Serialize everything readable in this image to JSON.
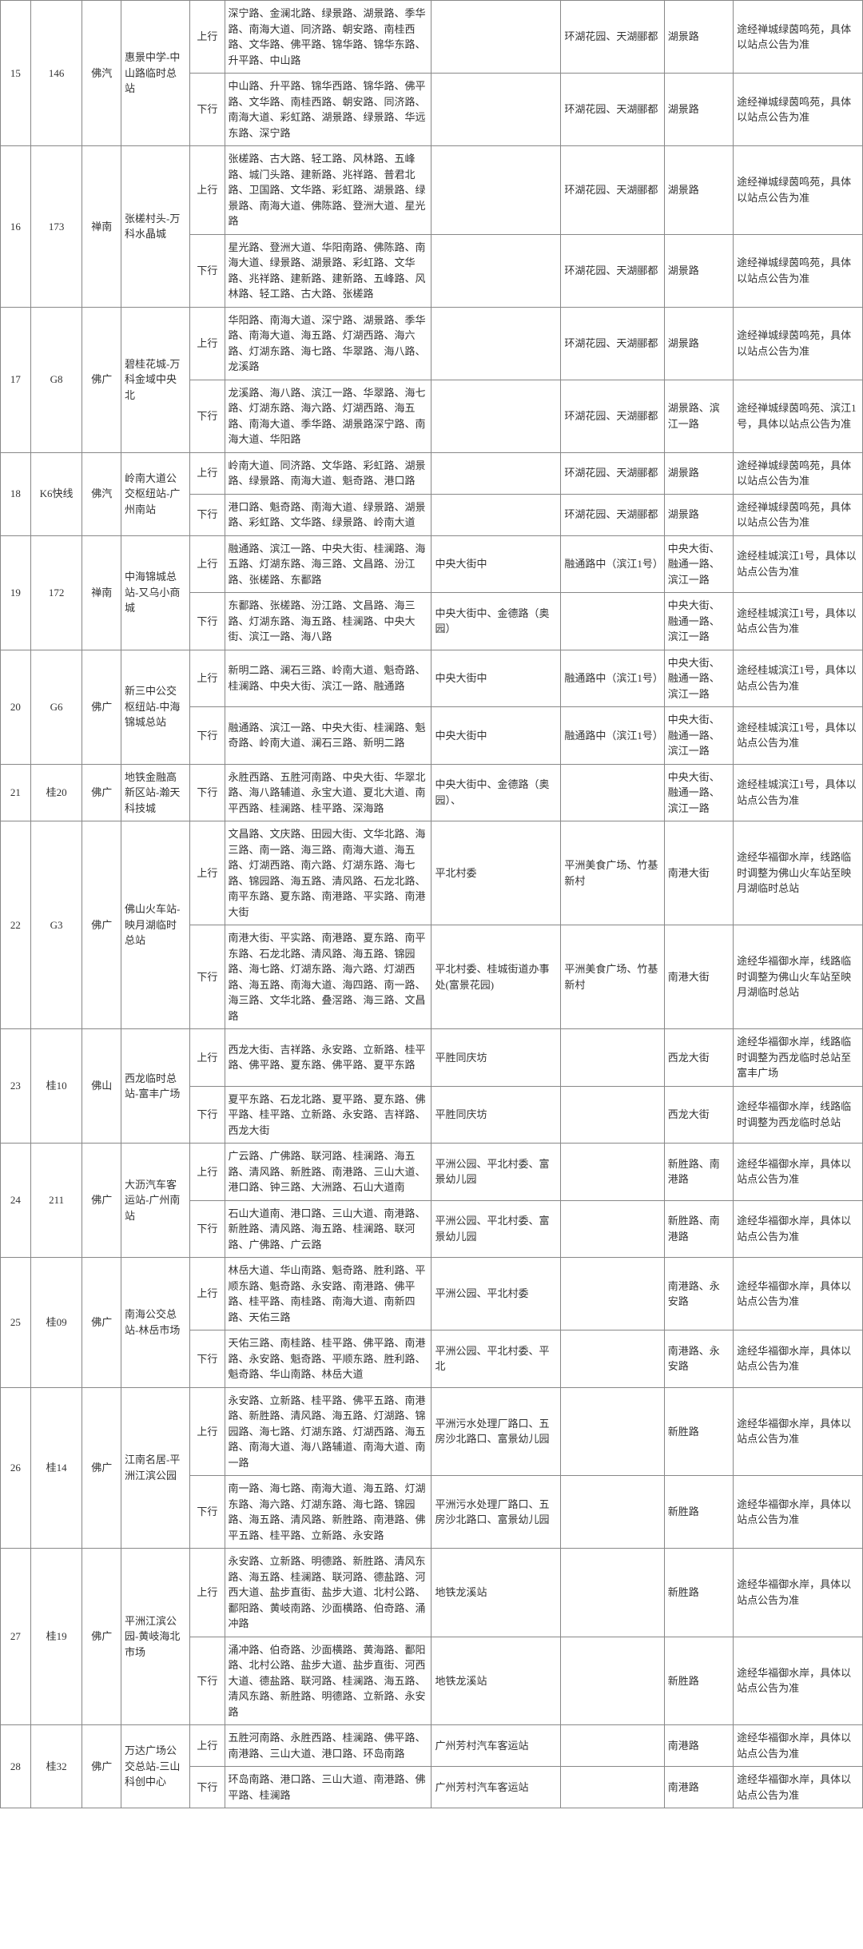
{
  "rows": [
    {
      "idx": "15",
      "route": "146",
      "op": "佛汽",
      "terminals": "惠景中学-中山路临时总站",
      "dirs": [
        {
          "d": "上行",
          "path": "深宁路、金澜北路、绿景路、湖景路、季华路、南海大道、同济路、朝安路、南桂西路、文华路、佛平路、锦华路、锦华东路、升平路、中山路",
          "c6": "",
          "c7": "环湖花园、天湖郦都",
          "c8": "湖景路",
          "c9": "途经禅城绿茵鸣苑，具体以站点公告为准"
        },
        {
          "d": "下行",
          "path": "中山路、升平路、锦华西路、锦华路、佛平路、文华路、南桂西路、朝安路、同济路、南海大道、彩虹路、湖景路、绿景路、华远东路、深宁路",
          "c6": "",
          "c7": "环湖花园、天湖郦都",
          "c8": "湖景路",
          "c9": "途经禅城绿茵鸣苑，具体以站点公告为准"
        }
      ]
    },
    {
      "idx": "16",
      "route": "173",
      "op": "禅南",
      "terminals": "张槎村头-万科水晶城",
      "dirs": [
        {
          "d": "上行",
          "path": "张槎路、古大路、轻工路、风林路、五峰路、城门头路、建新路、兆祥路、普君北路、卫国路、文华路、彩虹路、湖景路、绿景路、南海大道、佛陈路、登洲大道、星光路",
          "c6": "",
          "c7": "环湖花园、天湖郦都",
          "c8": "湖景路",
          "c9": "途经禅城绿茵鸣苑，具体以站点公告为准"
        },
        {
          "d": "下行",
          "path": "星光路、登洲大道、华阳南路、佛陈路、南海大道、绿景路、湖景路、彩虹路、文华路、兆祥路、建新路、建新路、五峰路、风林路、轻工路、古大路、张槎路",
          "c6": "",
          "c7": "环湖花园、天湖郦都",
          "c8": "湖景路",
          "c9": "途经禅城绿茵鸣苑，具体以站点公告为准"
        }
      ]
    },
    {
      "idx": "17",
      "route": "G8",
      "op": "佛广",
      "terminals": "碧桂花城-万科金域中央北",
      "dirs": [
        {
          "d": "上行",
          "path": "华阳路、南海大道、深宁路、湖景路、季华路、南海大道、海五路、灯湖西路、海六路、灯湖东路、海七路、华翠路、海八路、龙溪路",
          "c6": "",
          "c7": "环湖花园、天湖郦都",
          "c8": "湖景路",
          "c9": "途经禅城绿茵鸣苑，具体以站点公告为准"
        },
        {
          "d": "下行",
          "path": "龙溪路、海八路、滨江一路、华翠路、海七路、灯湖东路、海六路、灯湖西路、海五路、南海大道、季华路、湖景路深宁路、南海大道、华阳路",
          "c6": "",
          "c7": "环湖花园、天湖郦都",
          "c8": "湖景路、滨江一路",
          "c9": "途经禅城绿茵鸣苑、滨江1号，具体以站点公告为准"
        }
      ]
    },
    {
      "idx": "18",
      "route": "K6快线",
      "op": "佛汽",
      "terminals": "岭南大道公交枢纽站-广州南站",
      "dirs": [
        {
          "d": "上行",
          "path": "岭南大道、同济路、文华路、彩虹路、湖景路、绿景路、南海大道、魁奇路、港口路",
          "c6": "",
          "c7": "环湖花园、天湖郦都",
          "c8": "湖景路",
          "c9": "途经禅城绿茵鸣苑，具体以站点公告为准"
        },
        {
          "d": "下行",
          "path": "港口路、魁奇路、南海大道、绿景路、湖景路、彩虹路、文华路、绿景路、岭南大道",
          "c6": "",
          "c7": "环湖花园、天湖郦都",
          "c8": "湖景路",
          "c9": "途经禅城绿茵鸣苑，具体以站点公告为准"
        }
      ]
    },
    {
      "idx": "19",
      "route": "172",
      "op": "禅南",
      "terminals": "中海锦城总站-又乌小商城",
      "dirs": [
        {
          "d": "上行",
          "path": "融通路、滨江一路、中央大街、桂澜路、海五路、灯湖东路、海三路、文昌路、汾江路、张槎路、东鄱路",
          "c6": "中央大街中",
          "c7": "融通路中（滨江1号）",
          "c8": "中央大街、融通一路、滨江一路",
          "c9": "途经桂城滨江1号，具体以站点公告为准"
        },
        {
          "d": "下行",
          "path": "东鄱路、张槎路、汾江路、文昌路、海三路、灯湖东路、海五路、桂澜路、中央大街、滨江一路、海八路",
          "c6": "中央大街中、金德路（奥园）",
          "c7": "",
          "c8": "中央大街、融通一路、滨江一路",
          "c9": "途经桂城滨江1号，具体以站点公告为准"
        }
      ]
    },
    {
      "idx": "20",
      "route": "G6",
      "op": "佛广",
      "terminals": "新三中公交枢纽站-中海锦城总站",
      "dirs": [
        {
          "d": "上行",
          "path": "新明二路、澜石三路、岭南大道、魁奇路、桂澜路、中央大街、滨江一路、融通路",
          "c6": "中央大街中",
          "c7": "融通路中（滨江1号）",
          "c8": "中央大街、融通一路、滨江一路",
          "c9": "途经桂城滨江1号，具体以站点公告为准"
        },
        {
          "d": "下行",
          "path": "融通路、滨江一路、中央大街、桂澜路、魁奇路、岭南大道、澜石三路、新明二路",
          "c6": "中央大街中",
          "c7": "融通路中（滨江1号）",
          "c8": "中央大街、融通一路、滨江一路",
          "c9": "途经桂城滨江1号，具体以站点公告为准"
        }
      ]
    },
    {
      "idx": "21",
      "route": "桂20",
      "op": "佛广",
      "terminals": "地铁金融高新区站-瀚天科技城",
      "dirs": [
        {
          "d": "下行",
          "path": "永胜西路、五胜河南路、中央大街、华翠北路、海八路辅道、永宝大道、夏北大道、南平西路、桂澜路、桂平路、深海路",
          "c6": "中央大街中、金德路（奥园）、",
          "c7": "",
          "c8": "中央大街、融通一路、滨江一路",
          "c9": "途经桂城滨江1号，具体以站点公告为准"
        }
      ]
    },
    {
      "idx": "22",
      "route": "G3",
      "op": "佛广",
      "terminals": "佛山火车站-映月湖临时总站",
      "dirs": [
        {
          "d": "上行",
          "path": "文昌路、文庆路、田园大街、文华北路、海三路、南一路、海三路、南海大道、海五路、灯湖西路、南六路、灯湖东路、海七路、锦园路、海五路、清风路、石龙北路、南平东路、夏东路、南港路、平实路、南港大街",
          "c6": "平北村委",
          "c7": "平洲美食广场、竹基新村",
          "c8": "南港大街",
          "c9": "途经华福御水岸，线路临时调整为佛山火车站至映月湖临时总站"
        },
        {
          "d": "下行",
          "path": "南港大街、平实路、南港路、夏东路、南平东路、石龙北路、清风路、海五路、锦园路、海七路、灯湖东路、海六路、灯湖西路、海五路、南海大道、海四路、南一路、海三路、文华北路、叠滘路、海三路、文昌路",
          "c6": "平北村委、桂城街道办事处(富景花园)",
          "c7": "平洲美食广场、竹基新村",
          "c8": "南港大街",
          "c9": "途经华福御水岸，线路临时调整为佛山火车站至映月湖临时总站"
        }
      ]
    },
    {
      "idx": "23",
      "route": "桂10",
      "op": "佛山",
      "terminals": "西龙临时总站-富丰广场",
      "dirs": [
        {
          "d": "上行",
          "path": "西龙大街、吉祥路、永安路、立新路、桂平路、佛平路、夏东路、佛平路、夏平东路",
          "c6": "平胜同庆坊",
          "c7": "",
          "c8": "西龙大街",
          "c9": "途经华福御水岸，线路临时调整为西龙临时总站至富丰广场"
        },
        {
          "d": "下行",
          "path": "夏平东路、石龙北路、夏平路、夏东路、佛平路、桂平路、立新路、永安路、吉祥路、西龙大街",
          "c6": "平胜同庆坊",
          "c7": "",
          "c8": "西龙大街",
          "c9": "途经华福御水岸，线路临时调整为西龙临时总站"
        }
      ]
    },
    {
      "idx": "24",
      "route": "211",
      "op": "佛广",
      "terminals": "大沥汽车客运站-广州南站",
      "dirs": [
        {
          "d": "上行",
          "path": "广云路、广佛路、联河路、桂澜路、海五路、清风路、新胜路、南港路、三山大道、港口路、钟三路、大洲路、石山大道南",
          "c6": "平洲公园、平北村委、富景幼儿园",
          "c7": "",
          "c8": "新胜路、南港路",
          "c9": "途经华福御水岸，具体以站点公告为准"
        },
        {
          "d": "下行",
          "path": "石山大道南、港口路、三山大道、南港路、新胜路、清风路、海五路、桂澜路、联河路、广佛路、广云路",
          "c6": "平洲公园、平北村委、富景幼儿园",
          "c7": "",
          "c8": "新胜路、南港路",
          "c9": "途经华福御水岸，具体以站点公告为准"
        }
      ]
    },
    {
      "idx": "25",
      "route": "桂09",
      "op": "佛广",
      "terminals": "南海公交总站-林岳市场",
      "dirs": [
        {
          "d": "上行",
          "path": "林岳大道、华山南路、魁奇路、胜利路、平顺东路、魁奇路、永安路、南港路、佛平路、桂平路、南桂路、南海大道、南新四路、天佑三路",
          "c6": "平洲公园、平北村委",
          "c7": "",
          "c8": "南港路、永安路",
          "c9": "途经华福御水岸，具体以站点公告为准"
        },
        {
          "d": "下行",
          "path": "天佑三路、南桂路、桂平路、佛平路、南港路、永安路、魁奇路、平顺东路、胜利路、魁奇路、华山南路、林岳大道",
          "c6": "平洲公园、平北村委、平北",
          "c7": "",
          "c8": "南港路、永安路",
          "c9": "途经华福御水岸，具体以站点公告为准"
        }
      ]
    },
    {
      "idx": "26",
      "route": "桂14",
      "op": "佛广",
      "terminals": "江南名居-平洲江滨公园",
      "dirs": [
        {
          "d": "上行",
          "path": "永安路、立新路、桂平路、佛平五路、南港路、新胜路、清风路、海五路、灯湖路、锦园路、海七路、灯湖东路、灯湖西路、海五路、南海大道、海八路辅道、南海大道、南一路",
          "c6": "平洲污水处理厂路口、五房沙北路口、富景幼儿园",
          "c7": "",
          "c8": "新胜路",
          "c9": "途经华福御水岸，具体以站点公告为准"
        },
        {
          "d": "下行",
          "path": "南一路、海七路、南海大道、海五路、灯湖东路、海六路、灯湖东路、海七路、锦园路、海五路、清风路、新胜路、南港路、佛平五路、桂平路、立新路、永安路",
          "c6": "平洲污水处理厂路口、五房沙北路口、富景幼儿园",
          "c7": "",
          "c8": "新胜路",
          "c9": "途经华福御水岸，具体以站点公告为准"
        }
      ]
    },
    {
      "idx": "27",
      "route": "桂19",
      "op": "佛广",
      "terminals": "平洲江滨公园-黄岐海北市场",
      "dirs": [
        {
          "d": "上行",
          "path": "永安路、立新路、明德路、新胜路、清风东路、海五路、桂澜路、联河路、德盐路、河西大道、盐步直街、盐步大道、北村公路、鄱阳路、黄岐南路、沙面横路、伯奇路、涌冲路",
          "c6": "地铁龙溪站",
          "c7": "",
          "c8": "新胜路",
          "c9": "途经华福御水岸，具体以站点公告为准"
        },
        {
          "d": "下行",
          "path": "涌冲路、伯奇路、沙面横路、黄海路、鄱阳路、北村公路、盐步大道、盐步直街、河西大道、德盐路、联河路、桂澜路、海五路、清风东路、新胜路、明德路、立新路、永安路",
          "c6": "地铁龙溪站",
          "c7": "",
          "c8": "新胜路",
          "c9": "途经华福御水岸，具体以站点公告为准"
        }
      ]
    },
    {
      "idx": "28",
      "route": "桂32",
      "op": "佛广",
      "terminals": "万达广场公交总站-三山科创中心",
      "dirs": [
        {
          "d": "上行",
          "path": "五胜河南路、永胜西路、桂澜路、佛平路、南港路、三山大道、港口路、环岛南路",
          "c6": "广州芳村汽车客运站",
          "c7": "",
          "c8": "南港路",
          "c9": "途经华福御水岸，具体以站点公告为准"
        },
        {
          "d": "下行",
          "path": "环岛南路、港口路、三山大道、南港路、佛平路、桂澜路",
          "c6": "广州芳村汽车客运站",
          "c7": "",
          "c8": "南港路",
          "c9": "途经华福御水岸，具体以站点公告为准"
        }
      ]
    }
  ]
}
